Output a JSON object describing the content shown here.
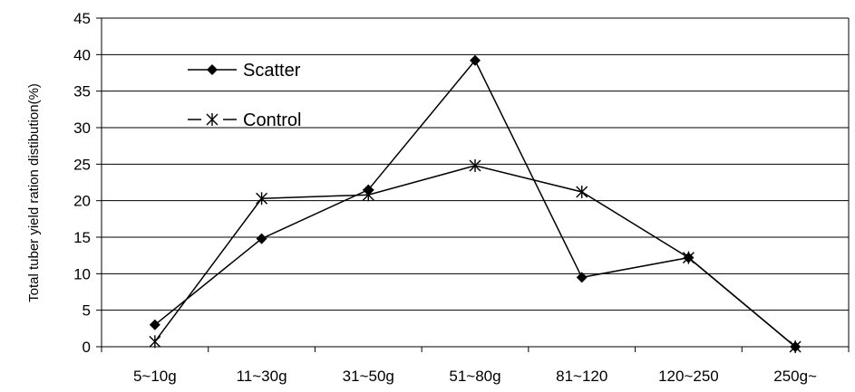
{
  "chart_data": {
    "type": "line",
    "title": "",
    "xlabel": "",
    "ylabel": "Total tuber yield ration distibution(%)",
    "categories": [
      "5~10g",
      "11~30g",
      "31~50g",
      "51~80g",
      "81~120",
      "120~250",
      "250g~"
    ],
    "ylim": [
      0,
      45
    ],
    "yticks": [
      0,
      5,
      10,
      15,
      20,
      25,
      30,
      35,
      40,
      45
    ],
    "grid": "horizontal",
    "legend": "top-left",
    "series": [
      {
        "name": "Scatter",
        "marker": "diamond",
        "color": "#000000",
        "values": [
          3.0,
          14.8,
          21.5,
          39.2,
          9.5,
          12.2,
          0.0
        ]
      },
      {
        "name": "Control",
        "marker": "asterisk",
        "color": "#000000",
        "values": [
          0.7,
          20.3,
          20.8,
          24.8,
          21.2,
          12.2,
          0.0
        ]
      }
    ]
  }
}
